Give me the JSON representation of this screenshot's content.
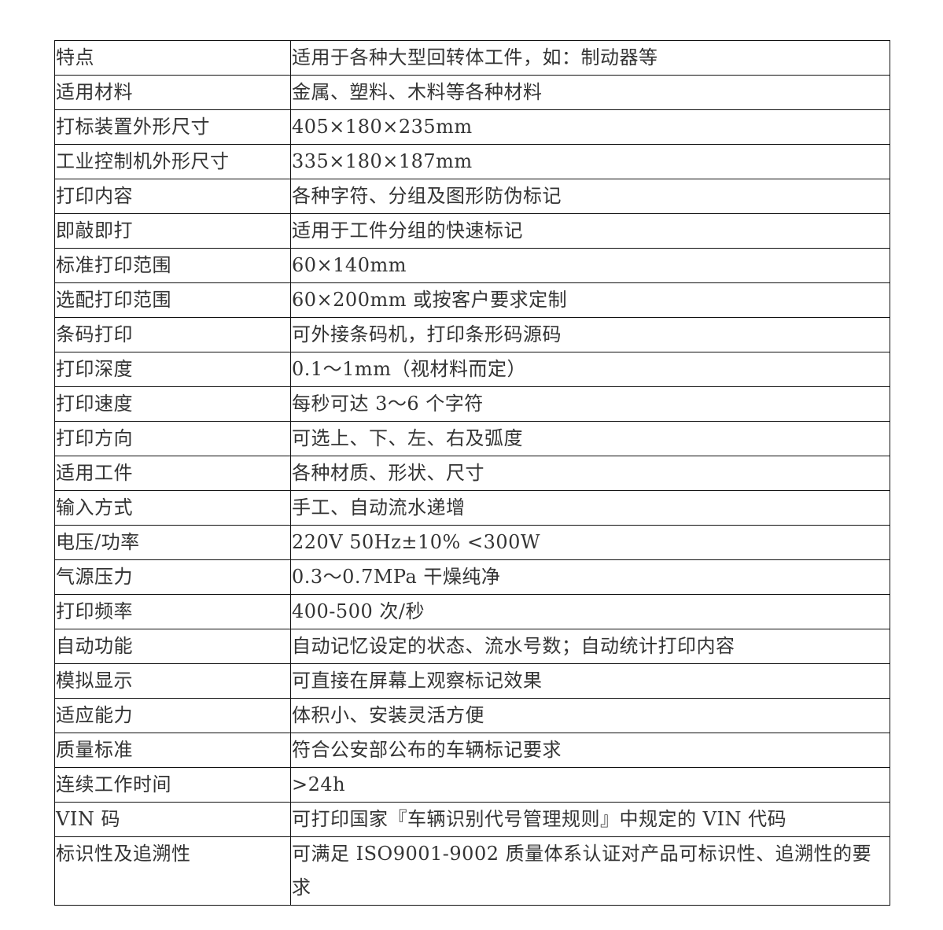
{
  "spec_table": {
    "rows": [
      {
        "label": "特点",
        "value": "适用于各种大型回转体工件，如：制动器等"
      },
      {
        "label": "适用材料",
        "value": "金属、塑料、木料等各种材料"
      },
      {
        "label": "打标装置外形尺寸",
        "value": "405×180×235mm"
      },
      {
        "label": "工业控制机外形尺寸",
        "value": "335×180×187mm"
      },
      {
        "label": "打印内容",
        "value": "各种字符、分组及图形防伪标记"
      },
      {
        "label": "即敲即打",
        "value": "适用于工件分组的快速标记"
      },
      {
        "label": "标准打印范围",
        "value": "60×140mm"
      },
      {
        "label": "选配打印范围",
        "value": "60×200mm 或按客户要求定制"
      },
      {
        "label": "条码打印",
        "value": "可外接条码机，打印条形码源码"
      },
      {
        "label": "打印深度",
        "value": "0.1～1mm（视材料而定）"
      },
      {
        "label": "打印速度",
        "value": "每秒可达 3～6 个字符"
      },
      {
        "label": "打印方向",
        "value": "可选上、下、左、右及弧度"
      },
      {
        "label": "适用工件",
        "value": "各种材质、形状、尺寸"
      },
      {
        "label": "输入方式",
        "value": "手工、自动流水递增"
      },
      {
        "label": "电压/功率",
        "value": "220V  50Hz±10% <300W"
      },
      {
        "label": "气源压力",
        "value": "0.3～0.7MPa 干燥纯净"
      },
      {
        "label": "打印频率",
        "value": "400-500 次/秒"
      },
      {
        "label": "自动功能",
        "value": "自动记忆设定的状态、流水号数；自动统计打印内容"
      },
      {
        "label": "模拟显示",
        "value": "可直接在屏幕上观察标记效果"
      },
      {
        "label": "适应能力",
        "value": "体积小、安装灵活方便"
      },
      {
        "label": "质量标准",
        "value": "符合公安部公布的车辆标记要求"
      },
      {
        "label": "连续工作时间",
        "value": ">24h"
      },
      {
        "label": "VIN 码",
        "value": "可打印国家『车辆识别代号管理规则』中规定的 VIN 代码"
      },
      {
        "label": "标识性及追溯性",
        "value": "可满足 ISO9001-9002 质量体系认证对产品可标识性、追溯性的要求"
      }
    ]
  }
}
